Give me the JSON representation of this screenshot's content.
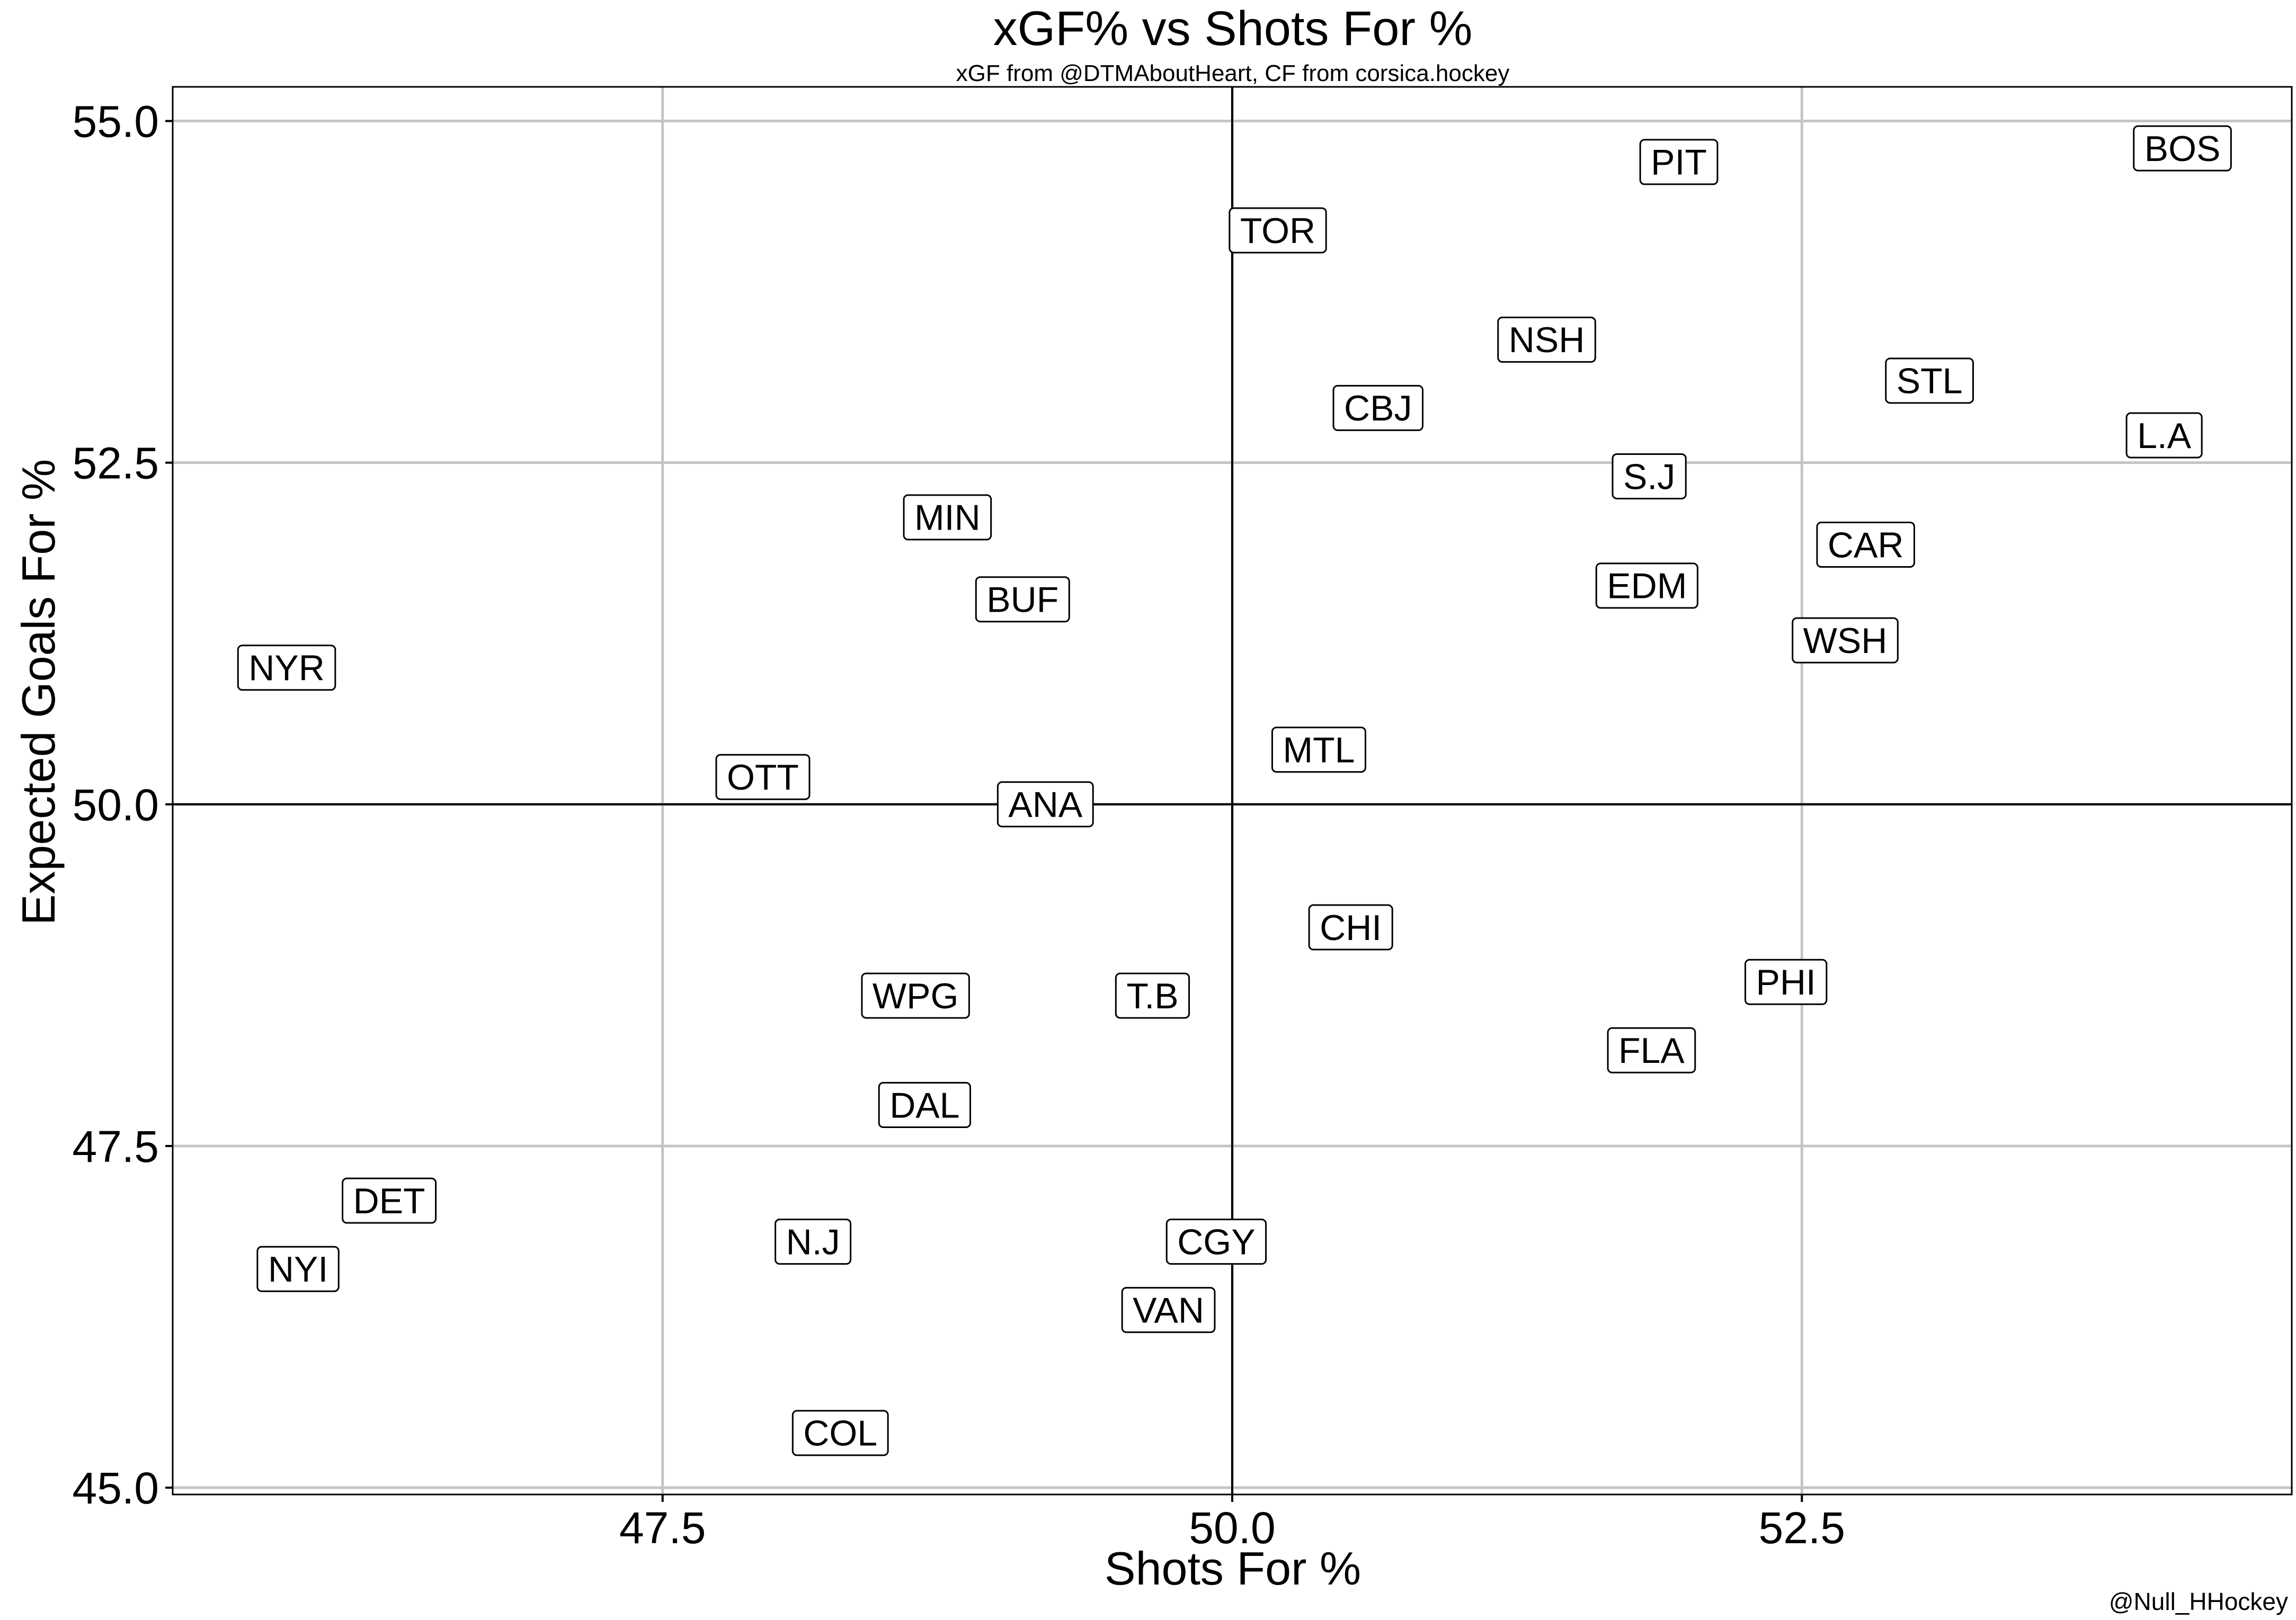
{
  "chart_data": {
    "type": "scatter",
    "title": "xGF% vs Shots For %",
    "subtitle": "xGF from @DTMAboutHeart, CF from corsica.hockey",
    "xlabel": "Shots For %",
    "ylabel": "Expected Goals For %",
    "caption": "@Null_HHockey",
    "xlim": [
      45.35,
      54.65
    ],
    "ylim": [
      44.95,
      55.25
    ],
    "xticks": [
      47.5,
      50.0,
      52.5
    ],
    "xtick_labels": [
      "47.5",
      "50.0",
      "52.5"
    ],
    "yticks": [
      45.0,
      47.5,
      50.0,
      52.5,
      55.0
    ],
    "ytick_labels": [
      "45.0",
      "47.5",
      "50.0",
      "52.5",
      "55.0"
    ],
    "reference_lines": {
      "x": 50.0,
      "y": 50.0
    },
    "grid": true,
    "points": [
      {
        "team": "BOS",
        "x": 54.17,
        "y": 54.8
      },
      {
        "team": "PIT",
        "x": 51.96,
        "y": 54.7
      },
      {
        "team": "TOR",
        "x": 50.2,
        "y": 54.2
      },
      {
        "team": "NSH",
        "x": 51.38,
        "y": 53.4
      },
      {
        "team": "STL",
        "x": 53.06,
        "y": 53.1
      },
      {
        "team": "CBJ",
        "x": 50.64,
        "y": 52.9
      },
      {
        "team": "L.A",
        "x": 54.09,
        "y": 52.7
      },
      {
        "team": "S.J",
        "x": 51.83,
        "y": 52.4
      },
      {
        "team": "MIN",
        "x": 48.75,
        "y": 52.1
      },
      {
        "team": "CAR",
        "x": 52.78,
        "y": 51.9
      },
      {
        "team": "EDM",
        "x": 51.82,
        "y": 51.6
      },
      {
        "team": "BUF",
        "x": 49.08,
        "y": 51.5
      },
      {
        "team": "WSH",
        "x": 52.69,
        "y": 51.2
      },
      {
        "team": "NYR",
        "x": 45.85,
        "y": 51.0
      },
      {
        "team": "MTL",
        "x": 50.38,
        "y": 50.4
      },
      {
        "team": "OTT",
        "x": 47.94,
        "y": 50.2
      },
      {
        "team": "ANA",
        "x": 49.18,
        "y": 50.0
      },
      {
        "team": "CHI",
        "x": 50.52,
        "y": 49.1
      },
      {
        "team": "PHI",
        "x": 52.43,
        "y": 48.7
      },
      {
        "team": "WPG",
        "x": 48.61,
        "y": 48.6
      },
      {
        "team": "T.B",
        "x": 49.65,
        "y": 48.6
      },
      {
        "team": "FLA",
        "x": 51.84,
        "y": 48.2
      },
      {
        "team": "DAL",
        "x": 48.65,
        "y": 47.8
      },
      {
        "team": "DET",
        "x": 46.3,
        "y": 47.1
      },
      {
        "team": "N.J",
        "x": 48.16,
        "y": 46.8
      },
      {
        "team": "CGY",
        "x": 49.93,
        "y": 46.8
      },
      {
        "team": "NYI",
        "x": 45.9,
        "y": 46.6
      },
      {
        "team": "VAN",
        "x": 49.72,
        "y": 46.3
      },
      {
        "team": "COL",
        "x": 48.28,
        "y": 45.4
      }
    ],
    "colors": {
      "grid": "#c4c4c4",
      "axis": "#000000",
      "reference_line": "#000000",
      "label_fill": "#ffffff",
      "label_border": "#000000",
      "text": "#000000"
    }
  }
}
